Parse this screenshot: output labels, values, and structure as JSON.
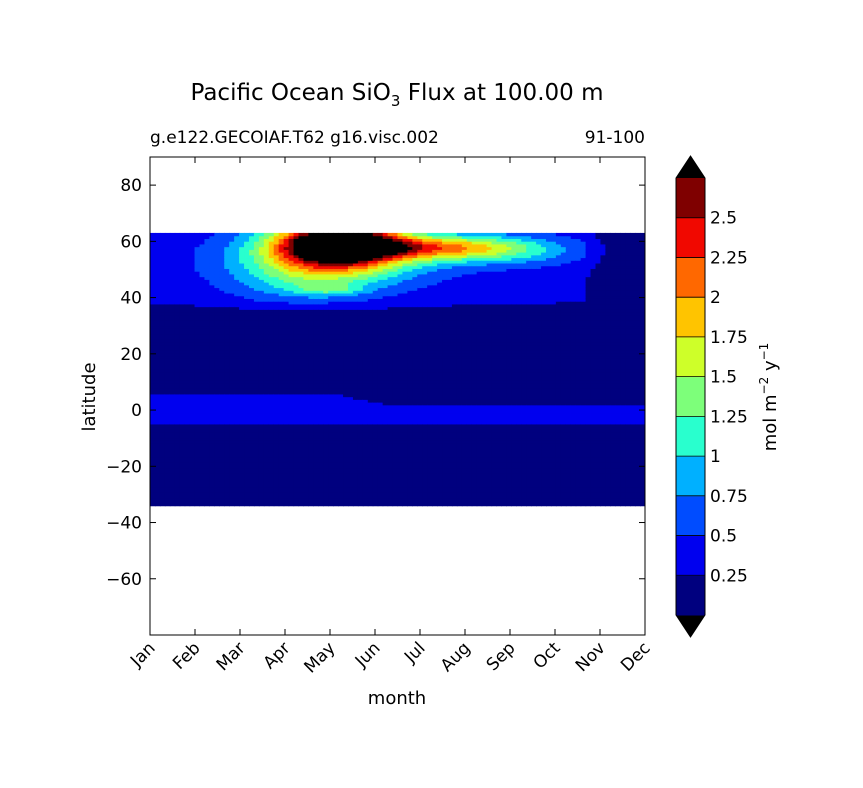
{
  "chart_data": {
    "type": "heatmap",
    "title": "Pacific Ocean SiO",
    "title_subscript": "3",
    "title_rest": " Flux at 100.00 m",
    "subtitle_left": "g.e122.GECOIAF.T62 g16.visc.002",
    "subtitle_right": "91-100",
    "xlabel": "month",
    "ylabel": "latitude",
    "x_ticks": [
      "Jan",
      "Feb",
      "Mar",
      "Apr",
      "May",
      "Jun",
      "Jul",
      "Aug",
      "Sep",
      "Oct",
      "Nov",
      "Dec"
    ],
    "y_ticks": [
      "80",
      "60",
      "40",
      "20",
      "0",
      "−20",
      "−40",
      "−60"
    ],
    "y_tick_values": [
      80,
      60,
      40,
      20,
      0,
      -20,
      -40,
      -60
    ],
    "ylim": [
      -80,
      90
    ],
    "data_lat_range": [
      -34,
      63
    ],
    "colorbar": {
      "label": "mol m",
      "label_sup1": "−2",
      "label_mid": " y",
      "label_sup2": "−1",
      "levels": [
        0,
        0.25,
        0.5,
        0.75,
        1,
        1.25,
        1.5,
        1.75,
        2,
        2.25,
        2.5,
        2.75
      ],
      "tick_labels": [
        "0.25",
        "0.5",
        "0.75",
        "1",
        "1.25",
        "1.5",
        "1.75",
        "2",
        "2.25",
        "2.5"
      ],
      "colors": [
        "#00007f",
        "#0000ef",
        "#004cff",
        "#00b0ff",
        "#29ffce",
        "#7dff7a",
        "#ceff29",
        "#ffc400",
        "#ff6800",
        "#f10800",
        "#7f0000"
      ],
      "over_color": "#000000",
      "under_color": "#000000",
      "extend": "both"
    }
  }
}
